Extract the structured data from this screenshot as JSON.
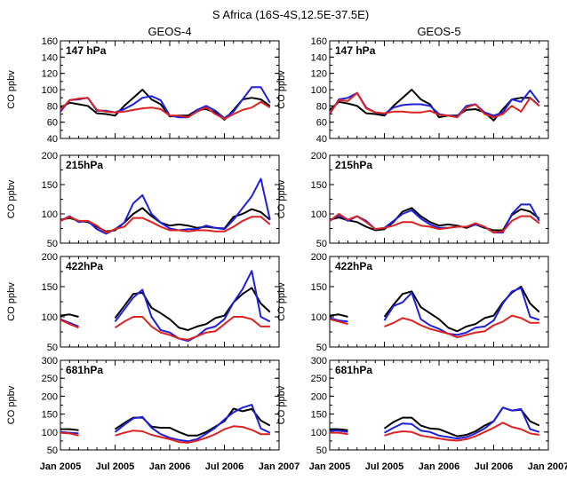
{
  "figure": {
    "title": "S Africa (16S-4S,12.5E-37.5E)",
    "column_titles": [
      "GEOS-4",
      "GEOS-5"
    ],
    "ylabel": "CO ppbv",
    "x_tick_labels": [
      "Jan 2005",
      "Jul 2005",
      "Jan 2006",
      "Jul 2006",
      "Jan 2007"
    ]
  },
  "colors": {
    "black": "#000000",
    "blue": "#1f1fdd",
    "red": "#dd2222"
  },
  "chart_data": [
    {
      "type": "line",
      "panel": "GEOS-4",
      "level": "147 hPa",
      "ylim": [
        40,
        160
      ],
      "yticks": [
        40,
        60,
        80,
        100,
        120,
        140,
        160
      ],
      "x": [
        0,
        0.5,
        1,
        1.5,
        2,
        2.5,
        3,
        3.5,
        4,
        4.5,
        5,
        5.5,
        6,
        6.5,
        7,
        7.5,
        8,
        8.5,
        9,
        9.5,
        10,
        10.5,
        11,
        11.5
      ],
      "series": [
        {
          "color": "black",
          "values": [
            78,
            84,
            82,
            80,
            71,
            70,
            68,
            80,
            90,
            100,
            88,
            82,
            67,
            68,
            68,
            75,
            76,
            72,
            63,
            75,
            88,
            90,
            88,
            80
          ]
        },
        {
          "color": "blue",
          "values": [
            73,
            87,
            88,
            90,
            74,
            74,
            72,
            76,
            82,
            90,
            92,
            87,
            68,
            66,
            66,
            75,
            80,
            74,
            65,
            73,
            88,
            103,
            103,
            84
          ]
        },
        {
          "color": "red",
          "values": [
            75,
            87,
            89,
            90,
            75,
            73,
            72,
            73,
            75,
            77,
            78,
            76,
            68,
            68,
            66,
            73,
            78,
            70,
            64,
            70,
            75,
            78,
            85,
            78
          ]
        }
      ]
    },
    {
      "type": "line",
      "panel": "GEOS-5",
      "level": "147 hPa",
      "ylim": [
        40,
        160
      ],
      "yticks": [
        40,
        60,
        80,
        100,
        120,
        140,
        160
      ],
      "x": [
        0,
        0.5,
        1,
        1.5,
        2,
        2.5,
        3,
        3.5,
        4,
        4.5,
        5,
        5.5,
        6,
        6.5,
        7,
        7.5,
        8,
        8.5,
        9,
        9.5,
        10,
        10.5,
        11,
        11.5
      ],
      "series": [
        {
          "color": "black",
          "values": [
            75,
            85,
            83,
            80,
            71,
            70,
            68,
            80,
            90,
            100,
            88,
            82,
            66,
            68,
            68,
            75,
            76,
            72,
            62,
            76,
            88,
            90,
            90,
            80
          ]
        },
        {
          "color": "blue",
          "values": [
            70,
            88,
            90,
            96,
            78,
            72,
            70,
            78,
            81,
            82,
            82,
            80,
            70,
            68,
            67,
            80,
            82,
            72,
            68,
            72,
            88,
            85,
            99,
            84
          ]
        },
        {
          "color": "red",
          "values": [
            71,
            87,
            86,
            96,
            77,
            72,
            71,
            73,
            73,
            72,
            72,
            74,
            69,
            68,
            66,
            78,
            82,
            70,
            66,
            70,
            80,
            73,
            90,
            80
          ]
        }
      ]
    },
    {
      "type": "line",
      "panel": "GEOS-4",
      "level": "215hPa",
      "ylim": [
        50,
        200
      ],
      "yticks": [
        50,
        100,
        150,
        200
      ],
      "x": [
        0,
        0.5,
        1,
        1.5,
        2,
        2.5,
        3,
        3.5,
        4,
        4.5,
        5,
        5.5,
        6,
        6.5,
        7,
        7.5,
        8,
        8.5,
        9,
        9.5,
        10,
        10.5,
        11,
        11.5
      ],
      "series": [
        {
          "color": "black",
          "values": [
            90,
            93,
            88,
            86,
            78,
            70,
            72,
            85,
            100,
            110,
            96,
            85,
            80,
            82,
            80,
            76,
            78,
            76,
            75,
            95,
            100,
            108,
            103,
            90
          ]
        },
        {
          "color": "blue",
          "values": [
            88,
            96,
            86,
            88,
            74,
            66,
            74,
            85,
            118,
            132,
            100,
            85,
            75,
            72,
            74,
            74,
            80,
            76,
            74,
            90,
            110,
            130,
            160,
            90
          ]
        },
        {
          "color": "red",
          "values": [
            88,
            95,
            88,
            88,
            80,
            68,
            74,
            78,
            93,
            93,
            86,
            78,
            72,
            72,
            70,
            72,
            72,
            70,
            70,
            78,
            88,
            95,
            95,
            82
          ]
        }
      ]
    },
    {
      "type": "line",
      "panel": "GEOS-5",
      "level": "215hPa",
      "ylim": [
        50,
        200
      ],
      "yticks": [
        50,
        100,
        150,
        200
      ],
      "x": [
        0,
        0.5,
        1,
        1.5,
        2,
        2.5,
        3,
        3.5,
        4,
        4.5,
        5,
        5.5,
        6,
        6.5,
        7,
        7.5,
        8,
        8.5,
        9,
        9.5,
        10,
        10.5,
        11,
        11.5
      ],
      "series": [
        {
          "color": "black",
          "values": [
            90,
            94,
            89,
            86,
            78,
            72,
            74,
            86,
            104,
            110,
            96,
            86,
            80,
            82,
            80,
            76,
            82,
            76,
            72,
            72,
            98,
            108,
            104,
            92
          ]
        },
        {
          "color": "blue",
          "values": [
            88,
            98,
            88,
            96,
            88,
            74,
            76,
            88,
            100,
            106,
            92,
            82,
            76,
            76,
            78,
            78,
            82,
            78,
            68,
            68,
            100,
            116,
            116,
            88
          ]
        },
        {
          "color": "red",
          "values": [
            88,
            100,
            90,
            96,
            86,
            74,
            76,
            80,
            86,
            86,
            80,
            78,
            74,
            76,
            78,
            78,
            84,
            78,
            68,
            70,
            88,
            96,
            96,
            84
          ]
        }
      ]
    },
    {
      "type": "line",
      "panel": "GEOS-4",
      "level": "422hPa",
      "ylim": [
        50,
        200
      ],
      "yticks": [
        50,
        100,
        150,
        200
      ],
      "x": [
        0,
        0.5,
        1,
        1.5,
        2,
        2.5,
        3,
        3.5,
        4,
        4.5,
        5,
        5.5,
        6,
        6.5,
        7,
        7.5,
        8,
        8.5,
        9,
        9.5,
        10,
        10.5,
        11,
        11.5
      ],
      "series": [
        {
          "color": "black",
          "values": [
            102,
            104,
            100,
            null,
            null,
            null,
            98,
            118,
            138,
            140,
            115,
            106,
            96,
            82,
            78,
            84,
            88,
            98,
            102,
            124,
            138,
            148,
            122,
            108
          ]
        },
        {
          "color": "blue",
          "values": [
            96,
            90,
            84,
            null,
            null,
            null,
            92,
            112,
            132,
            145,
            100,
            78,
            74,
            64,
            60,
            68,
            80,
            84,
            96,
            124,
            146,
            176,
            100,
            92
          ]
        },
        {
          "color": "red",
          "values": [
            95,
            88,
            82,
            null,
            null,
            null,
            82,
            92,
            100,
            100,
            84,
            74,
            70,
            64,
            62,
            68,
            74,
            76,
            88,
            100,
            100,
            96,
            84,
            84
          ]
        }
      ]
    },
    {
      "type": "line",
      "panel": "GEOS-5",
      "level": "422hPa",
      "ylim": [
        50,
        200
      ],
      "yticks": [
        50,
        100,
        150,
        200
      ],
      "x": [
        0,
        0.5,
        1,
        1.5,
        2,
        2.5,
        3,
        3.5,
        4,
        4.5,
        5,
        5.5,
        6,
        6.5,
        7,
        7.5,
        8,
        8.5,
        9,
        9.5,
        10,
        10.5,
        11,
        11.5
      ],
      "series": [
        {
          "color": "black",
          "values": [
            102,
            104,
            100,
            null,
            null,
            null,
            100,
            120,
            138,
            142,
            116,
            106,
            96,
            82,
            76,
            84,
            88,
            98,
            102,
            124,
            140,
            150,
            122,
            108
          ]
        },
        {
          "color": "blue",
          "values": [
            98,
            94,
            92,
            null,
            null,
            null,
            94,
            118,
            124,
            140,
            96,
            86,
            80,
            72,
            70,
            74,
            82,
            84,
            94,
            122,
            142,
            148,
            100,
            95
          ]
        },
        {
          "color": "red",
          "values": [
            96,
            92,
            88,
            null,
            null,
            null,
            84,
            90,
            98,
            94,
            86,
            80,
            76,
            72,
            66,
            70,
            74,
            76,
            86,
            92,
            102,
            98,
            90,
            90
          ]
        }
      ]
    },
    {
      "type": "line",
      "panel": "GEOS-4",
      "level": "681hPa",
      "ylim": [
        50,
        300
      ],
      "yticks": [
        50,
        100,
        150,
        200,
        250,
        300
      ],
      "x": [
        0,
        0.5,
        1,
        1.5,
        2,
        2.5,
        3,
        3.5,
        4,
        4.5,
        5,
        5.5,
        6,
        6.5,
        7,
        7.5,
        8,
        8.5,
        9,
        9.5,
        10,
        10.5,
        11,
        11.5
      ],
      "series": [
        {
          "color": "black",
          "values": [
            108,
            108,
            105,
            null,
            null,
            null,
            108,
            125,
            140,
            140,
            115,
            112,
            112,
            100,
            90,
            90,
            100,
            115,
            130,
            165,
            158,
            164,
            132,
            118
          ]
        },
        {
          "color": "blue",
          "values": [
            100,
            98,
            96,
            null,
            null,
            null,
            100,
            120,
            138,
            142,
            112,
            94,
            84,
            78,
            74,
            80,
            95,
            112,
            135,
            155,
            168,
            176,
            110,
            98
          ]
        },
        {
          "color": "red",
          "values": [
            98,
            96,
            90,
            null,
            null,
            null,
            90,
            98,
            104,
            102,
            92,
            86,
            80,
            72,
            70,
            76,
            84,
            94,
            108,
            116,
            114,
            106,
            94,
            94
          ]
        }
      ]
    },
    {
      "type": "line",
      "panel": "GEOS-5",
      "level": "681hPa",
      "ylim": [
        50,
        300
      ],
      "yticks": [
        50,
        100,
        150,
        200,
        250,
        300
      ],
      "x": [
        0,
        0.5,
        1,
        1.5,
        2,
        2.5,
        3,
        3.5,
        4,
        4.5,
        5,
        5.5,
        6,
        6.5,
        7,
        7.5,
        8,
        8.5,
        9,
        9.5,
        10,
        10.5,
        11,
        11.5
      ],
      "series": [
        {
          "color": "black",
          "values": [
            108,
            108,
            105,
            null,
            null,
            null,
            110,
            128,
            140,
            140,
            118,
            110,
            108,
            98,
            88,
            92,
            102,
            118,
            130,
            168,
            160,
            162,
            130,
            118
          ]
        },
        {
          "color": "blue",
          "values": [
            104,
            104,
            100,
            null,
            null,
            null,
            98,
            112,
            124,
            122,
            104,
            100,
            90,
            86,
            82,
            86,
            96,
            110,
            130,
            168,
            160,
            164,
            108,
            100
          ]
        },
        {
          "color": "red",
          "values": [
            98,
            98,
            94,
            null,
            null,
            null,
            90,
            98,
            102,
            100,
            90,
            86,
            82,
            78,
            76,
            80,
            88,
            100,
            112,
            126,
            114,
            108,
            96,
            92
          ]
        }
      ]
    }
  ]
}
